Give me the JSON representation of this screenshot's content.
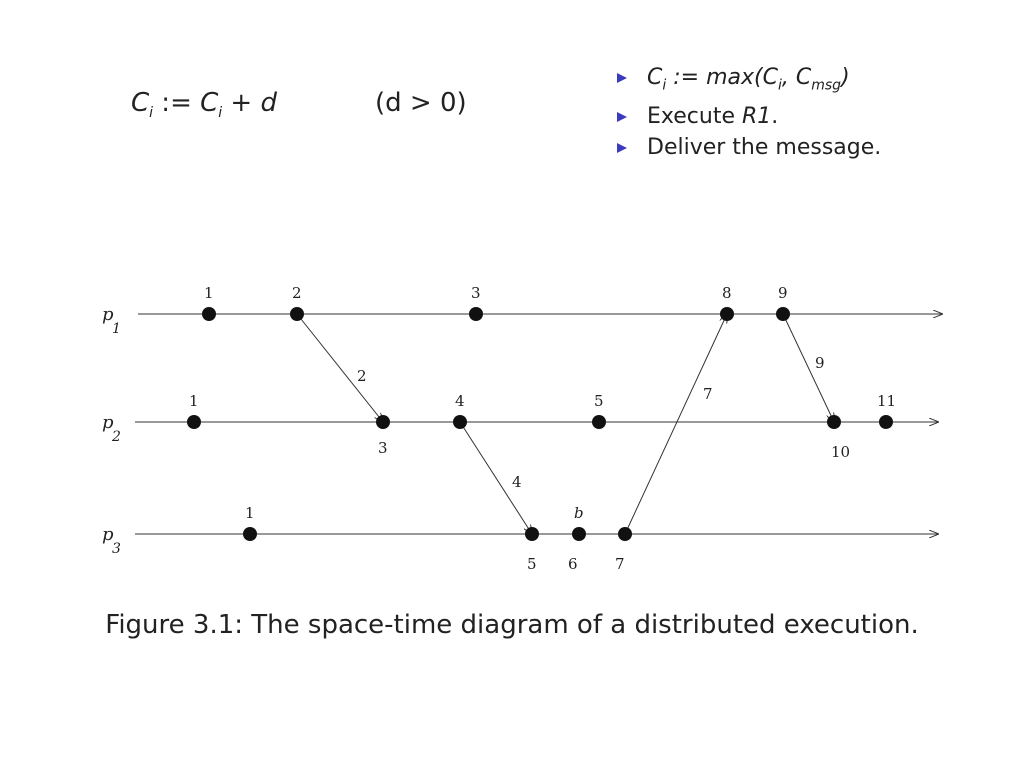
{
  "rule1": {
    "lhs": "C",
    "lhs_sub": "i",
    "assign": " := ",
    "rhs": "C",
    "rhs_sub": "i",
    "rhs_tail": " + d",
    "condition": "(d > 0)"
  },
  "rule2": {
    "b0_prefix": "C",
    "b0_sub": "i",
    "b0_mid": " := max(C",
    "b0_sub2": "i",
    "b0_mid2": ", C",
    "b0_sub3": "msg",
    "b0_end": ")",
    "b1_text": "Execute ",
    "b1_ital": "R1",
    "b1_end": ".",
    "b2_text": "Deliver the message."
  },
  "processes": [
    {
      "name": "p",
      "sub": "1"
    },
    {
      "name": "p",
      "sub": "2"
    },
    {
      "name": "p",
      "sub": "3"
    }
  ],
  "events": {
    "p1": [
      "1",
      "2",
      "3",
      "8",
      "9"
    ],
    "p2": [
      "1",
      "3",
      "4",
      "5",
      "10",
      "11"
    ],
    "p3": [
      "1",
      "5",
      "6",
      "7"
    ]
  },
  "p3_event_b_label": "b",
  "messages": [
    "2",
    "4",
    "7",
    "9"
  ],
  "caption": "Figure 3.1: The space-time diagram of a distributed execution."
}
